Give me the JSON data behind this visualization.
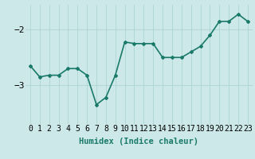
{
  "x": [
    0,
    1,
    2,
    3,
    4,
    5,
    6,
    7,
    8,
    9,
    10,
    11,
    12,
    13,
    14,
    15,
    16,
    17,
    18,
    19,
    20,
    21,
    22,
    23
  ],
  "y": [
    -2.65,
    -2.85,
    -2.82,
    -2.82,
    -2.7,
    -2.7,
    -2.82,
    -3.35,
    -3.22,
    -2.82,
    -2.22,
    -2.25,
    -2.25,
    -2.25,
    -2.5,
    -2.5,
    -2.5,
    -2.4,
    -2.3,
    -2.1,
    -1.85,
    -1.85,
    -1.72,
    -1.85
  ],
  "line_color": "#1a7a6a",
  "marker": "D",
  "marker_size": 2.0,
  "bg_color": "#cce8e8",
  "grid_color": "#aed4d4",
  "xlabel": "Humidex (Indice chaleur)",
  "yticks": [
    -3,
    -2
  ],
  "ylim": [
    -3.7,
    -1.55
  ],
  "xlim": [
    -0.5,
    23.5
  ],
  "xlabel_fontsize": 7.5,
  "tick_fontsize": 7,
  "ytick_fontsize": 8,
  "line_width": 1.2
}
